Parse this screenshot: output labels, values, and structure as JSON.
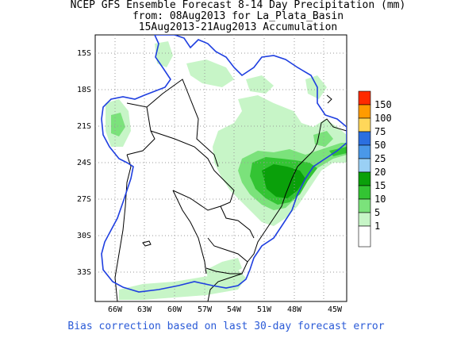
{
  "title": {
    "line1": "NCEP GFS Ensemble Forecast 8-14 Day Precipitation (mm)",
    "line2": "from: 08Aug2013   for La_Plata_Basin",
    "line3": "15Aug2013-21Aug2013 Accumulation"
  },
  "axes": {
    "lat_labels": [
      "15S",
      "18S",
      "21S",
      "24S",
      "27S",
      "30S",
      "33S"
    ],
    "lon_labels": [
      "66W",
      "63W",
      "60W",
      "57W",
      "54W",
      "51W",
      "48W",
      "45W"
    ]
  },
  "legend": {
    "labels": [
      "150",
      "100",
      "75",
      "50",
      "25",
      "20",
      "15",
      "10",
      "5",
      "1"
    ],
    "colors": [
      "#ff2a00",
      "#ff9b00",
      "#ffd75a",
      "#2b6fe0",
      "#4a98e8",
      "#9ad0f5",
      "#0aa00a",
      "#33c433",
      "#7be27b",
      "#c7f5c7",
      "#ffffff"
    ]
  },
  "footer": {
    "bias_note": "Bias correction based on last 30-day forecast error"
  },
  "colors": {
    "basin_outline": "#1f3fe0",
    "borders": "#000000",
    "grid": "#9a9a9a"
  }
}
